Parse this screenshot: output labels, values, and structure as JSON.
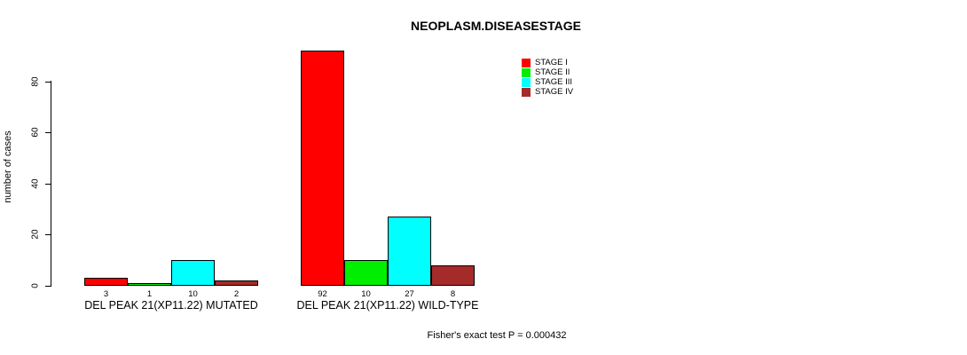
{
  "title": "NEOPLASM.DISEASESTAGE",
  "footer": "Fisher's exact test P = 0.000432",
  "y_axis": {
    "label": "number of cases"
  },
  "legend": {
    "position": "top-right",
    "entries": [
      {
        "label": "STAGE I",
        "color": "#FF0000"
      },
      {
        "label": "STAGE II",
        "color": "#00EE00"
      },
      {
        "label": "STAGE III",
        "color": "#00FFFF"
      },
      {
        "label": "STAGE IV",
        "color": "#A52A2A"
      }
    ]
  },
  "chart_data": {
    "type": "bar",
    "title": "NEOPLASM.DISEASESTAGE",
    "ylabel": "number of cases",
    "xlabel": "",
    "ylim": [
      0,
      92
    ],
    "yticks": [
      0,
      20,
      40,
      60,
      80
    ],
    "grid": false,
    "legend_position": "top-right",
    "series_labels": [
      "STAGE I",
      "STAGE II",
      "STAGE III",
      "STAGE IV"
    ],
    "series_colors": [
      "#FF0000",
      "#00EE00",
      "#00FFFF",
      "#A52A2A"
    ],
    "groups": [
      {
        "label": "DEL PEAK 21(XP11.22) MUTATED",
        "values": [
          3,
          1,
          10,
          2
        ],
        "value_labels": [
          "3",
          "1",
          "10",
          "2"
        ]
      },
      {
        "label": "DEL PEAK 21(XP11.22) WILD-TYPE",
        "values": [
          92,
          10,
          27,
          8
        ],
        "value_labels": [
          "92",
          "10",
          "27",
          "8"
        ]
      }
    ],
    "annotation": "Fisher's exact test P = 0.000432"
  }
}
